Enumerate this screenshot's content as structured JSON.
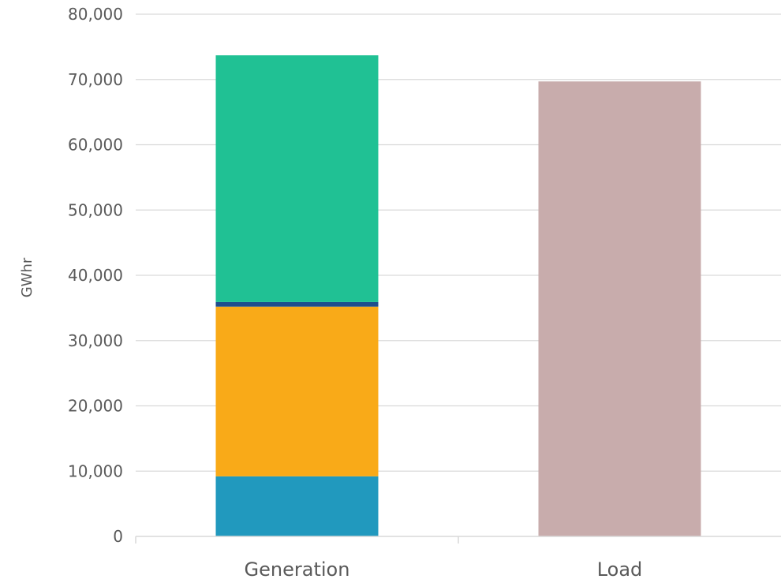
{
  "chart_data": {
    "type": "bar",
    "stacked": true,
    "title": "",
    "xlabel": "",
    "ylabel": "GWhr",
    "ylim": [
      0,
      80000
    ],
    "yticks": [
      0,
      10000,
      20000,
      30000,
      40000,
      50000,
      60000,
      70000,
      80000
    ],
    "ytick_labels": [
      "0",
      "10,000",
      "20,000",
      "30,000",
      "40,000",
      "50,000",
      "60,000",
      "70,000",
      "80,000"
    ],
    "categories": [
      "Generation",
      "Load"
    ],
    "grid": true,
    "legend": "none",
    "series": [
      {
        "color": "#2199BE",
        "values": [
          9200,
          0
        ]
      },
      {
        "color": "#F9AA18",
        "values": [
          26000,
          0
        ]
      },
      {
        "color": "#1F4E8C",
        "values": [
          700,
          0
        ]
      },
      {
        "color": "#20C194",
        "values": [
          37800,
          0
        ]
      },
      {
        "color": "#C8ACAC",
        "values": [
          0,
          69700
        ]
      }
    ]
  }
}
